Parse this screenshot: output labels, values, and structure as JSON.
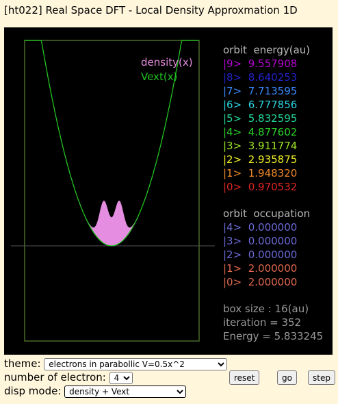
{
  "title": "[ht022] Real Space DFT - Local Density Approxmation 1D",
  "legend": {
    "density": "density(x)",
    "vext": "Vext(x)",
    "density_color": "#e58de0",
    "vext_color": "#22c422"
  },
  "energy_header": "orbit  energy(au)",
  "orbits": [
    {
      "label": "|9>",
      "energy": "9.557908",
      "color": "#b400d0"
    },
    {
      "label": "|8>",
      "energy": "8.640253",
      "color": "#2222cc"
    },
    {
      "label": "|7>",
      "energy": "7.713595",
      "color": "#3b8bff"
    },
    {
      "label": "|6>",
      "energy": "6.777856",
      "color": "#2ad4e0"
    },
    {
      "label": "|5>",
      "energy": "5.832595",
      "color": "#22d69a"
    },
    {
      "label": "|4>",
      "energy": "4.877602",
      "color": "#2ad42a"
    },
    {
      "label": "|3>",
      "energy": "3.911774",
      "color": "#9ce825"
    },
    {
      "label": "|2>",
      "energy": "2.935875",
      "color": "#eeee25"
    },
    {
      "label": "|1>",
      "energy": "1.948320",
      "color": "#f08a2a"
    },
    {
      "label": "|0>",
      "energy": "0.970532",
      "color": "#e02424"
    }
  ],
  "occupation_header": "orbit  occupation",
  "occupations": [
    {
      "label": "|4>",
      "value": "0.000000",
      "color": "#6b6bd8"
    },
    {
      "label": "|3>",
      "value": "0.000000",
      "color": "#6b6bd8"
    },
    {
      "label": "|2>",
      "value": "0.000000",
      "color": "#6b6bd8"
    },
    {
      "label": "|1>",
      "value": "2.000000",
      "color": "#e06850"
    },
    {
      "label": "|0>",
      "value": "2.000000",
      "color": "#e06850"
    }
  ],
  "stats": {
    "box_size": "box size : 16(au)",
    "iteration": "iteration = 352",
    "energy": "Energy = 5.833245"
  },
  "controls": {
    "theme_label": "theme:",
    "theme_value": "electrons in parabollic V=0.5x^2",
    "electrons_label": "number of electron:",
    "electrons_value": "4",
    "disp_label": "disp mode:",
    "disp_value": "density + Vext",
    "reset": "reset",
    "go": "go",
    "step": "step"
  }
}
